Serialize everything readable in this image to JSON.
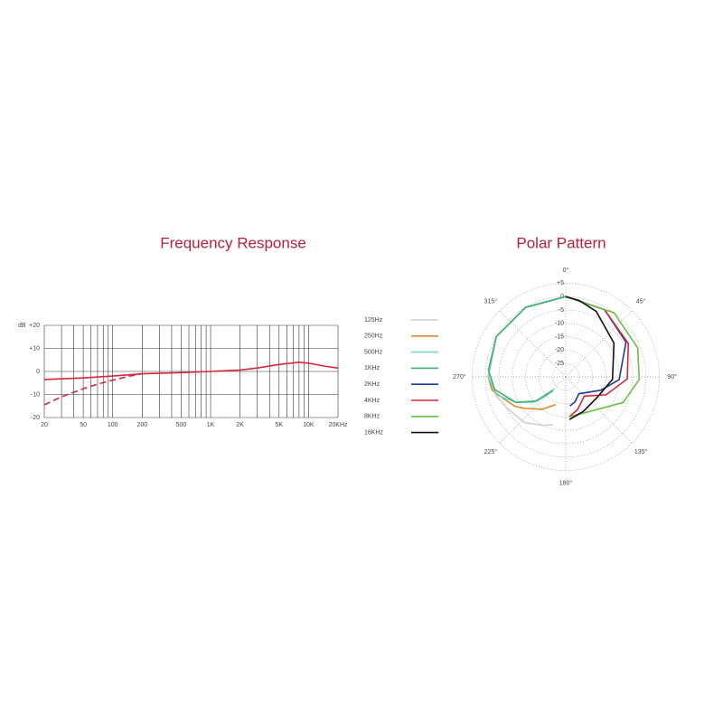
{
  "chart_data": [
    {
      "type": "line",
      "title": "Frequency Response",
      "y_label": "dB",
      "xscale": "log",
      "grid": true,
      "xlim": [
        20,
        20000
      ],
      "ylim": [
        -20,
        20
      ],
      "xticks": [
        20,
        50,
        100,
        200,
        500,
        {
          "value": 1000,
          "label": "1K"
        },
        {
          "value": 2000,
          "label": "2K"
        },
        {
          "value": 5000,
          "label": "5K"
        },
        {
          "value": 10000,
          "label": "10K"
        },
        {
          "value": 20000,
          "label": "20KHz"
        }
      ],
      "xgrid": [
        20,
        30,
        40,
        50,
        60,
        70,
        80,
        90,
        100,
        200,
        300,
        400,
        500,
        600,
        700,
        800,
        900,
        1000,
        2000,
        3000,
        4000,
        5000,
        6000,
        7000,
        8000,
        9000,
        10000,
        20000
      ],
      "yticks": [
        {
          "value": 20,
          "label": "+20"
        },
        {
          "value": 10,
          "label": "+10"
        },
        0,
        -10,
        -20
      ],
      "series": [
        {
          "color": "#d7263d",
          "linestyle": "solid",
          "x": [
            20,
            50,
            100,
            200,
            500,
            1000,
            2000,
            3000,
            5000,
            8000,
            10000,
            15000,
            20000
          ],
          "values": [
            -3.5,
            -2.8,
            -2,
            -1,
            -0.5,
            0,
            0.6,
            1.5,
            3,
            4,
            3.6,
            2.2,
            1.5
          ]
        },
        {
          "color": "#d7263d",
          "linestyle": "dashed",
          "x": [
            20,
            30,
            50,
            70,
            100,
            150,
            200
          ],
          "values": [
            -14.5,
            -11,
            -7.5,
            -5.5,
            -3.8,
            -2,
            -1
          ]
        }
      ]
    },
    {
      "type": "polar",
      "title": "Polar Pattern",
      "legend": "left",
      "rlim": [
        -30,
        5
      ],
      "rticks": [
        {
          "value": 5,
          "label": "+5"
        },
        0,
        -5,
        -10,
        -15,
        -20,
        -25
      ],
      "angle_ticks": [
        {
          "value": 0,
          "label": "0°"
        },
        {
          "value": 45,
          "label": "45°"
        },
        {
          "value": 90,
          "label": "90°"
        },
        {
          "value": 135,
          "label": "135°"
        },
        {
          "value": 180,
          "label": "180°"
        },
        {
          "value": 225,
          "label": "225°"
        },
        {
          "value": 270,
          "label": "270°"
        },
        {
          "value": 315,
          "label": "315°"
        }
      ],
      "series": [
        {
          "name": "125Hz",
          "color": "#cfcfcf",
          "theta": [
            0,
            330,
            300,
            270,
            255,
            243,
            222,
            205,
            195
          ],
          "values": [
            0,
            0,
            0,
            -1,
            -3,
            -5,
            -7,
            -10,
            -11.5
          ]
        },
        {
          "name": "250Hz",
          "color": "#e2892b",
          "theta": [
            0,
            330,
            300,
            270,
            260,
            252,
            240,
            233,
            216,
            200
          ],
          "values": [
            0,
            0,
            0,
            -1,
            -2,
            -5,
            -8,
            -10.5,
            -15,
            -19
          ]
        },
        {
          "name": "500Hz",
          "color": "#7fd3d0",
          "theta": [
            0,
            330,
            300,
            270,
            255,
            243,
            232,
            223
          ],
          "values": [
            0,
            0,
            0,
            -1,
            -3.5,
            -9,
            -14.6,
            -24
          ]
        },
        {
          "name": "1KHz",
          "color": "#3cb371",
          "theta": [
            0,
            330,
            300,
            275,
            260,
            243,
            230,
            223
          ],
          "values": [
            0,
            0,
            0,
            -1,
            -3,
            -9,
            -16,
            -23
          ]
        },
        {
          "name": "2KHz",
          "color": "#1f3c99",
          "theta": [
            0,
            30,
            60,
            93,
            111,
            142,
            160,
            172
          ],
          "values": [
            0,
            -1,
            -4,
            -10,
            -16,
            -22,
            -20,
            -19
          ]
        },
        {
          "name": "4KHz",
          "color": "#d7263d",
          "theta": [
            0,
            30,
            62,
            92,
            114,
            136,
            160,
            175
          ],
          "values": [
            0,
            -1,
            -3.5,
            -7,
            -13.5,
            -20,
            -17,
            -15
          ]
        },
        {
          "name": "8KHz",
          "color": "#6bbf45",
          "theta": [
            0,
            37,
            68,
            92,
            114,
            143,
            175
          ],
          "values": [
            0,
            0,
            -1,
            -2.5,
            -6.5,
            -14,
            -15
          ]
        },
        {
          "name": "16KHz",
          "color": "#111111",
          "theta": [
            0,
            10,
            25,
            55,
            93,
            124,
            153,
            175
          ],
          "values": [
            0,
            -1,
            -3,
            -8,
            -12.5,
            -16,
            -15.5,
            -14
          ]
        }
      ]
    }
  ]
}
